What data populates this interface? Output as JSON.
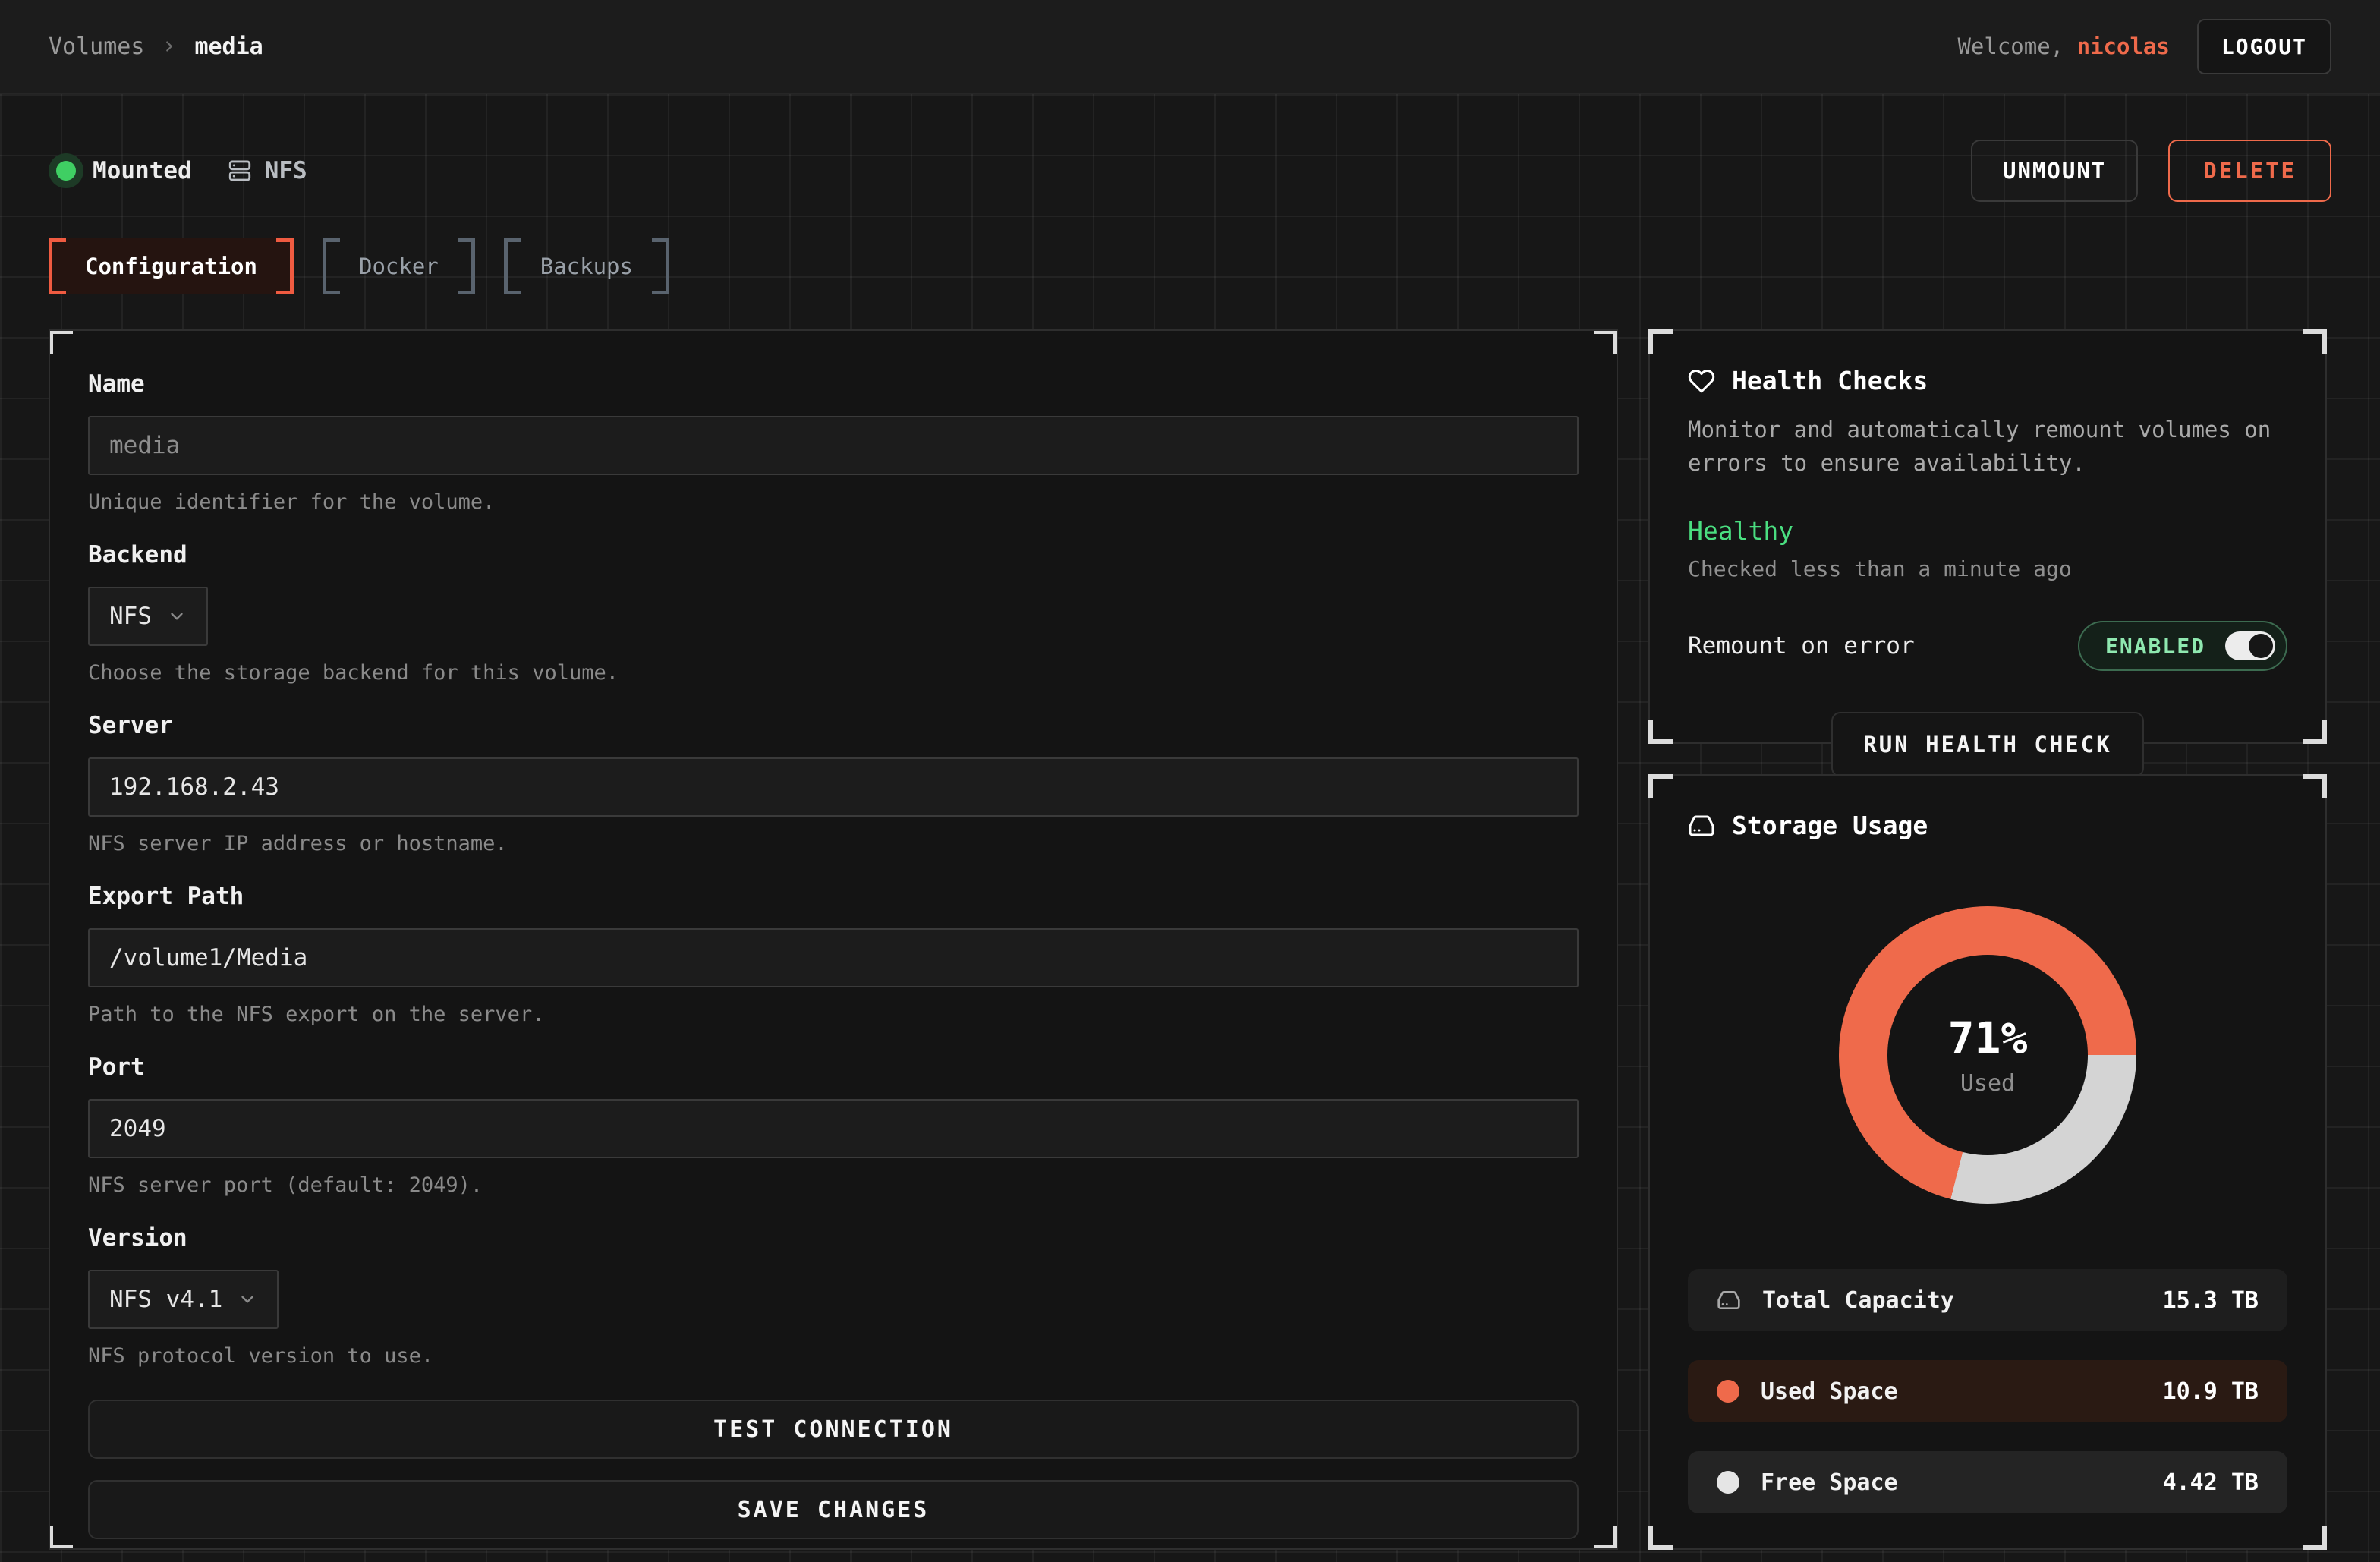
{
  "colors": {
    "accent": "#ef6a4b",
    "green": "#4ade80",
    "mint": "#8fe8b0",
    "seg-free": "#d4d4d4"
  },
  "header": {
    "breadcrumb": {
      "root": "Volumes",
      "current": "media"
    },
    "welcome_prefix": "Welcome,",
    "username": "nicolas",
    "logout_label": "LOGOUT"
  },
  "status_bar": {
    "mount_status": "Mounted",
    "backend_badge": "NFS",
    "unmount_label": "UNMOUNT",
    "delete_label": "DELETE"
  },
  "tabs": [
    {
      "label": "Configuration",
      "active": true
    },
    {
      "label": "Docker",
      "active": false
    },
    {
      "label": "Backups",
      "active": false
    }
  ],
  "form": {
    "name": {
      "label": "Name",
      "value": "media",
      "helper": "Unique identifier for the volume."
    },
    "backend": {
      "label": "Backend",
      "value": "NFS",
      "helper": "Choose the storage backend for this volume."
    },
    "server": {
      "label": "Server",
      "value": "192.168.2.43",
      "helper": "NFS server IP address or hostname."
    },
    "export_path": {
      "label": "Export Path",
      "value": "/volume1/Media",
      "helper": "Path to the NFS export on the server."
    },
    "port": {
      "label": "Port",
      "value": "2049",
      "helper": "NFS server port (default: 2049)."
    },
    "version": {
      "label": "Version",
      "value": "NFS v4.1",
      "helper": "NFS protocol version to use."
    },
    "test_button": "TEST CONNECTION",
    "save_button": "SAVE CHANGES"
  },
  "health": {
    "title": "Health Checks",
    "description": "Monitor and automatically remount volumes on errors to ensure availability.",
    "status": "Healthy",
    "checked": "Checked less than a minute ago",
    "remount_label": "Remount on error",
    "toggle_label": "ENABLED",
    "toggle_on": true,
    "run_button": "RUN HEALTH CHECK"
  },
  "storage": {
    "title": "Storage Usage",
    "center_value": "71%",
    "center_label": "Used",
    "rows": {
      "total": {
        "label": "Total Capacity",
        "value": "15.3 TB"
      },
      "used": {
        "label": "Used Space",
        "value": "10.9 TB"
      },
      "free": {
        "label": "Free Space",
        "value": "4.42 TB"
      }
    }
  },
  "chart_data": {
    "type": "pie",
    "title": "Storage Usage",
    "labels": [
      "Used Space",
      "Free Space"
    ],
    "values_tb": [
      10.9,
      4.42
    ],
    "total_tb": 15.3,
    "used_percent": 71,
    "center_text": "71%",
    "center_subtext": "Used",
    "colors": [
      "#ef6a4b",
      "#d4d4d4"
    ],
    "start_angle_deg": 90,
    "free_segment_position": "right"
  }
}
